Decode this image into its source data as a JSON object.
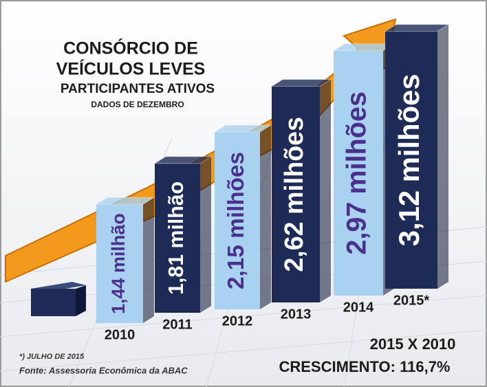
{
  "chart_data": {
    "type": "bar",
    "title": [
      "CONSÓRCIO DE",
      "VEÍCULOS LEVES"
    ],
    "subtitle": "PARTICIPANTES ATIVOS",
    "note": "DADOS DE DEZEMBRO",
    "categories": [
      "2010",
      "2011",
      "2012",
      "2013",
      "2014",
      "2015*"
    ],
    "values": [
      1.44,
      1.81,
      2.15,
      2.62,
      2.97,
      3.12
    ],
    "value_labels": [
      "1,44 milhão",
      "1,81 milhão",
      "2,15 milhões",
      "2,62 milhões",
      "2,97 milhões",
      "3,12 milhões"
    ],
    "colors": [
      "#a9d2f0",
      "#1e2b57",
      "#a9d2f0",
      "#1e2b57",
      "#a9d2f0",
      "#1e2b57"
    ],
    "label_colors": [
      "#4b2f8c",
      "#ffffff",
      "#4b2f8c",
      "#ffffff",
      "#4b2f8c",
      "#ffffff"
    ],
    "footnotes": [
      "*) JULHO DE 2015",
      "Fonte: Assessoria Econômica da ABAC"
    ],
    "annotation": [
      "2015 X 2010",
      "CRESCIMENTO: 116,7%"
    ]
  }
}
